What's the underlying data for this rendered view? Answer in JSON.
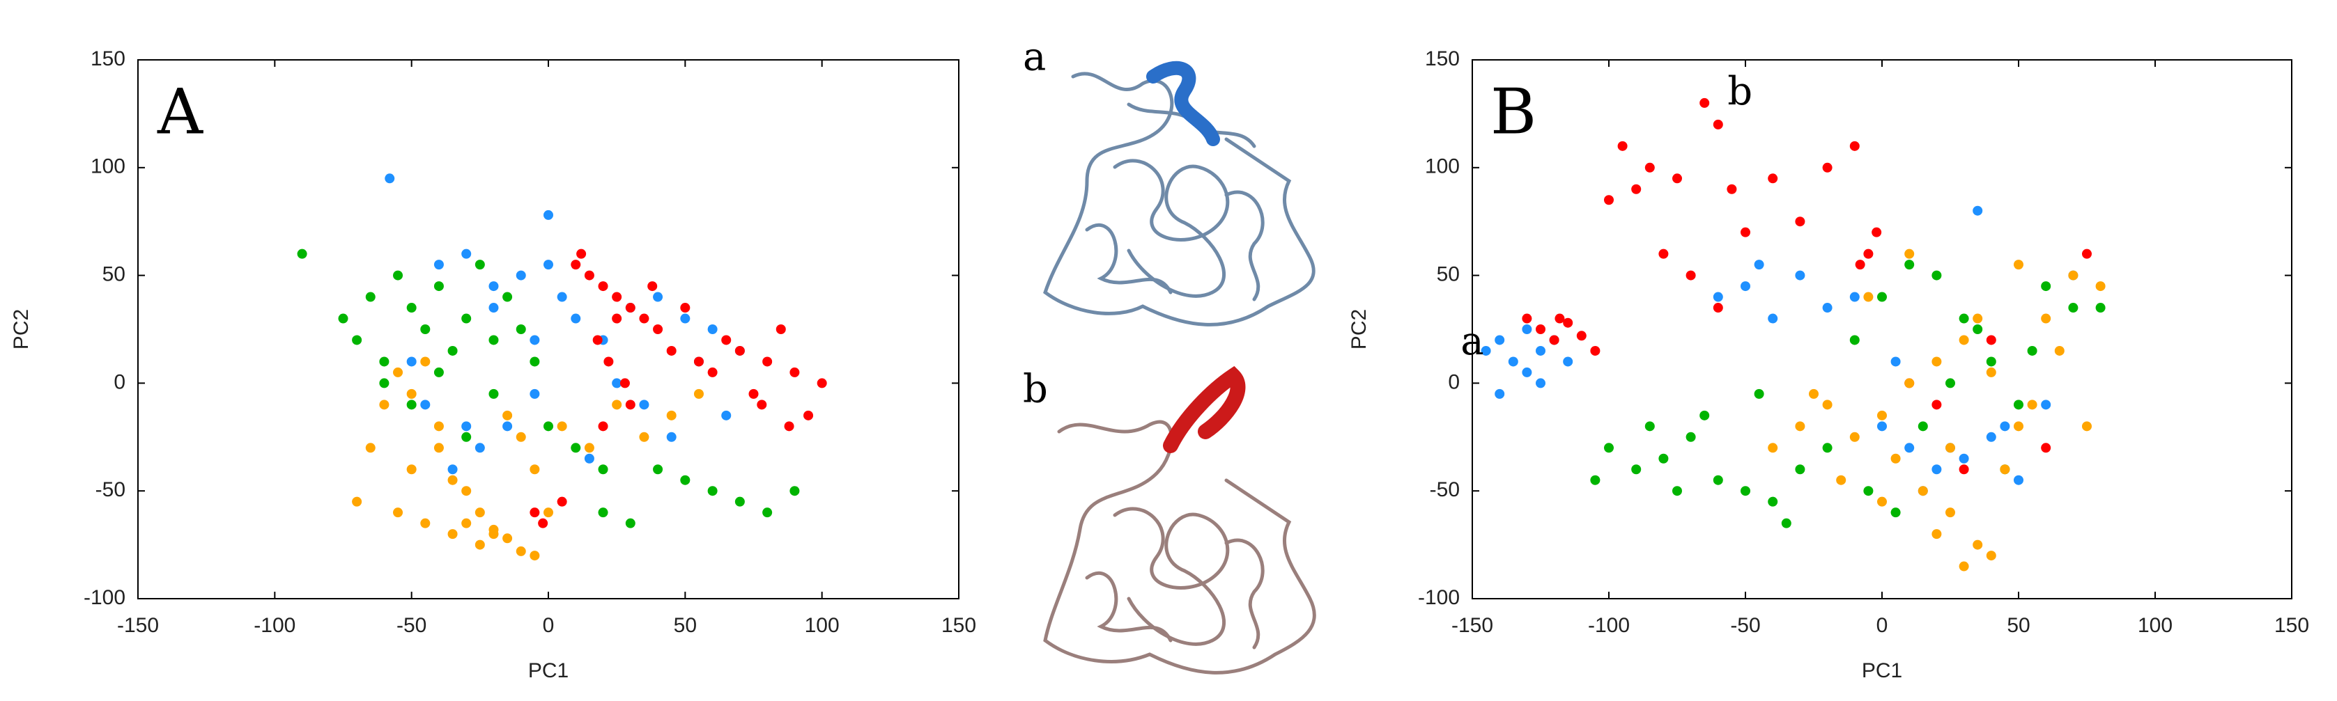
{
  "chart_data": [
    {
      "type": "scatter",
      "panel_label": "A",
      "xlabel": "PC1",
      "ylabel": "PC2",
      "xlim": [
        -150,
        150
      ],
      "ylim": [
        -100,
        150
      ],
      "xticks": [
        -150,
        -100,
        -50,
        0,
        50,
        100,
        150
      ],
      "yticks": [
        -100,
        -50,
        0,
        50,
        100,
        150
      ],
      "series": [
        {
          "color": "#1e90ff",
          "x": [
            -58,
            -40,
            -30,
            -20,
            -10,
            0,
            5,
            10,
            20,
            30,
            40,
            50,
            60,
            70,
            -50,
            -45,
            -35,
            -25,
            -15,
            -5,
            15,
            25,
            35,
            45,
            55,
            65,
            -30,
            -20,
            0,
            -5
          ],
          "y": [
            95,
            55,
            60,
            45,
            50,
            78,
            40,
            30,
            20,
            35,
            40,
            30,
            25,
            15,
            10,
            -10,
            -40,
            -30,
            -20,
            20,
            -35,
            0,
            -10,
            -25,
            10,
            -15,
            -20,
            35,
            55,
            -5
          ]
        },
        {
          "color": "#ff0000",
          "x": [
            10,
            15,
            20,
            25,
            30,
            35,
            40,
            18,
            22,
            28,
            45,
            55,
            60,
            65,
            70,
            75,
            80,
            85,
            90,
            95,
            100,
            88,
            78,
            12,
            5,
            -5,
            -2,
            30,
            38,
            50,
            20,
            25
          ],
          "y": [
            55,
            50,
            45,
            40,
            35,
            30,
            25,
            20,
            10,
            0,
            15,
            10,
            5,
            20,
            15,
            -5,
            10,
            25,
            5,
            -15,
            0,
            -20,
            -10,
            60,
            -55,
            -60,
            -65,
            -10,
            45,
            35,
            -20,
            30
          ]
        },
        {
          "color": "#00b400",
          "x": [
            -90,
            -75,
            -70,
            -65,
            -60,
            -55,
            -50,
            -45,
            -40,
            -35,
            -30,
            -25,
            -20,
            -15,
            -10,
            -60,
            -50,
            -40,
            -30,
            -20,
            0,
            10,
            20,
            50,
            60,
            70,
            80,
            90,
            20,
            30,
            -5,
            40
          ],
          "y": [
            60,
            30,
            20,
            40,
            10,
            50,
            35,
            25,
            45,
            15,
            30,
            55,
            20,
            40,
            25,
            0,
            -10,
            5,
            -25,
            -5,
            -20,
            -30,
            -40,
            -45,
            -50,
            -55,
            -60,
            -50,
            -60,
            -65,
            10,
            -40
          ]
        },
        {
          "color": "#ffa500",
          "x": [
            -70,
            -65,
            -60,
            -55,
            -50,
            -45,
            -40,
            -35,
            -30,
            -25,
            -20,
            -15,
            -10,
            -5,
            0,
            -30,
            -25,
            -20,
            -35,
            -40,
            -15,
            -10,
            5,
            15,
            25,
            35,
            45,
            55,
            -55,
            -50,
            -45,
            -5
          ],
          "y": [
            -55,
            -30,
            -10,
            -60,
            -40,
            -65,
            -20,
            -70,
            -65,
            -75,
            -70,
            -72,
            -78,
            -80,
            -60,
            -50,
            -60,
            -68,
            -45,
            -30,
            -15,
            -25,
            -20,
            -30,
            -10,
            -25,
            -15,
            -5,
            5,
            -5,
            10,
            -40
          ]
        }
      ]
    },
    {
      "type": "scatter",
      "panel_label": "B",
      "xlabel": "PC1",
      "ylabel": "PC2",
      "xlim": [
        -150,
        150
      ],
      "ylim": [
        -100,
        150
      ],
      "xticks": [
        -150,
        -100,
        -50,
        0,
        50,
        100,
        150
      ],
      "yticks": [
        -100,
        -50,
        0,
        50,
        100,
        150
      ],
      "annotations": [
        "a",
        "b"
      ],
      "series": [
        {
          "color": "#1e90ff",
          "x": [
            -145,
            -140,
            -135,
            -130,
            -125,
            -120,
            -115,
            -130,
            -125,
            -140,
            -60,
            -50,
            -40,
            -30,
            -20,
            -10,
            0,
            10,
            20,
            30,
            40,
            50,
            60,
            70,
            15,
            25,
            35,
            45,
            5,
            -45
          ],
          "y": [
            15,
            20,
            10,
            5,
            15,
            20,
            10,
            25,
            0,
            -5,
            40,
            45,
            30,
            50,
            35,
            40,
            -20,
            -30,
            -40,
            -35,
            -25,
            -45,
            -10,
            50,
            -50,
            -30,
            80,
            -20,
            10,
            55
          ]
        },
        {
          "color": "#ff0000",
          "x": [
            -130,
            -125,
            -120,
            -115,
            -110,
            -105,
            -118,
            -95,
            -90,
            -85,
            -80,
            -75,
            -70,
            -65,
            -60,
            -55,
            -50,
            -40,
            -30,
            -20,
            -10,
            -5,
            -8,
            -2,
            -60,
            20,
            30,
            40,
            60,
            75,
            -100,
            10
          ],
          "y": [
            30,
            25,
            20,
            28,
            22,
            15,
            30,
            110,
            90,
            100,
            60,
            95,
            50,
            130,
            120,
            90,
            70,
            95,
            75,
            100,
            110,
            60,
            55,
            70,
            35,
            -10,
            -40,
            20,
            -30,
            60,
            85,
            0
          ]
        },
        {
          "color": "#00b400",
          "x": [
            -105,
            -100,
            -90,
            -80,
            -70,
            -60,
            -50,
            -40,
            -30,
            -20,
            -85,
            -75,
            -65,
            -10,
            0,
            10,
            20,
            30,
            40,
            50,
            60,
            70,
            80,
            5,
            15,
            25,
            35,
            45,
            55,
            -5,
            -35,
            -45
          ],
          "y": [
            -45,
            -30,
            -40,
            -35,
            -25,
            -45,
            -50,
            -55,
            -40,
            -30,
            -20,
            -50,
            -15,
            20,
            40,
            55,
            50,
            30,
            10,
            -10,
            45,
            35,
            35,
            -60,
            -20,
            0,
            25,
            -40,
            15,
            -50,
            -65,
            -5
          ]
        },
        {
          "color": "#ffa500",
          "x": [
            -40,
            -30,
            -20,
            -10,
            0,
            10,
            20,
            30,
            40,
            50,
            60,
            70,
            80,
            5,
            15,
            25,
            35,
            45,
            55,
            65,
            -15,
            -5,
            20,
            30,
            40,
            10,
            25,
            35,
            -25,
            50,
            75,
            0
          ],
          "y": [
            -30,
            -20,
            -10,
            -25,
            -15,
            0,
            10,
            20,
            5,
            -20,
            30,
            50,
            45,
            -35,
            -50,
            -60,
            -75,
            -40,
            -10,
            15,
            -45,
            40,
            -70,
            -85,
            -80,
            60,
            -30,
            30,
            -5,
            55,
            -20,
            -55
          ]
        }
      ]
    }
  ],
  "structures": {
    "labels": [
      "a",
      "b"
    ]
  }
}
